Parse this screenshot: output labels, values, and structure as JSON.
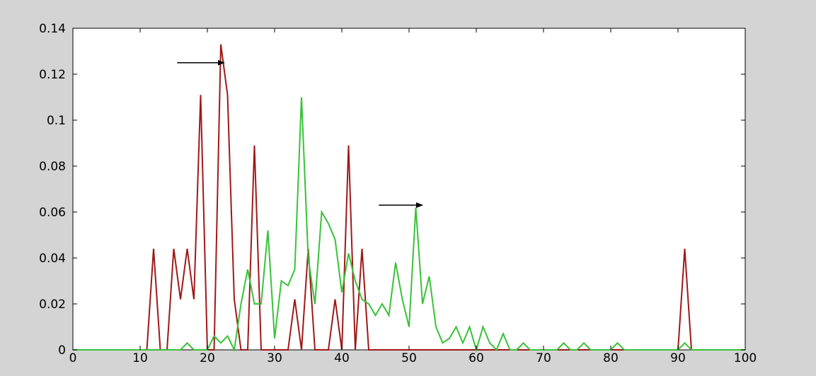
{
  "chart_data": {
    "type": "line",
    "title": "",
    "xlabel": "",
    "ylabel": "",
    "xlim": [
      0,
      100
    ],
    "ylim": [
      0,
      0.14
    ],
    "grid": false,
    "x_ticks": [
      0,
      10,
      20,
      30,
      40,
      50,
      60,
      70,
      80,
      90,
      100
    ],
    "x_tick_labels": [
      "0",
      "10",
      "20",
      "30",
      "40",
      "50",
      "60",
      "70",
      "80",
      "90",
      "100"
    ],
    "y_ticks": [
      0,
      0.02,
      0.04,
      0.06,
      0.08,
      0.1,
      0.12,
      0.14
    ],
    "y_tick_labels": [
      "0",
      "0.02",
      "0.04",
      "0.06",
      "0.08",
      "0.1",
      "0.12",
      "0.14"
    ],
    "series": [
      {
        "color": "#a01818",
        "x": [
          0,
          11,
          12,
          13,
          14,
          15,
          16,
          17,
          18,
          19,
          20,
          21,
          22,
          23,
          24,
          25,
          26,
          27,
          28,
          29,
          30,
          31,
          32,
          33,
          34,
          35,
          36,
          37,
          38,
          39,
          40,
          41,
          42,
          43,
          44,
          45,
          89,
          90,
          91,
          92,
          93,
          100
        ],
        "y": [
          0,
          0,
          0.044,
          0,
          0,
          0.044,
          0.022,
          0.044,
          0.022,
          0.111,
          0,
          0,
          0.133,
          0.111,
          0.022,
          0,
          0,
          0.089,
          0,
          0,
          0,
          0,
          0,
          0.022,
          0,
          0.044,
          0,
          0,
          0,
          0.022,
          0,
          0.089,
          0,
          0.044,
          0,
          0,
          0,
          0,
          0.044,
          0,
          0,
          0
        ]
      },
      {
        "color": "#38c238",
        "x": [
          0,
          16,
          17,
          18,
          19,
          20,
          21,
          22,
          23,
          24,
          25,
          26,
          27,
          28,
          29,
          30,
          31,
          32,
          33,
          34,
          35,
          36,
          37,
          38,
          39,
          40,
          41,
          42,
          43,
          44,
          45,
          46,
          47,
          48,
          49,
          50,
          51,
          52,
          53,
          54,
          55,
          56,
          57,
          58,
          59,
          60,
          61,
          62,
          63,
          64,
          65,
          66,
          67,
          68,
          72,
          73,
          74,
          75,
          76,
          77,
          80,
          81,
          82,
          90,
          91,
          92,
          100
        ],
        "y": [
          0,
          0,
          0.003,
          0,
          0,
          0,
          0.006,
          0.003,
          0.006,
          0,
          0.02,
          0.035,
          0.02,
          0.02,
          0.052,
          0.005,
          0.03,
          0.028,
          0.035,
          0.11,
          0.04,
          0.02,
          0.06,
          0.055,
          0.048,
          0.025,
          0.042,
          0.03,
          0.022,
          0.02,
          0.015,
          0.02,
          0.015,
          0.038,
          0.022,
          0.01,
          0.062,
          0.02,
          0.032,
          0.01,
          0.003,
          0.005,
          0.01,
          0.003,
          0.01,
          0,
          0.01,
          0.003,
          0,
          0.007,
          0,
          0,
          0.003,
          0,
          0,
          0.003,
          0,
          0,
          0.003,
          0,
          0,
          0.003,
          0,
          0,
          0.003,
          0,
          0
        ]
      }
    ],
    "annotations": [
      {
        "type": "arrow",
        "from": [
          15.5,
          0.125
        ],
        "to": [
          22.5,
          0.125
        ]
      },
      {
        "type": "arrow",
        "from": [
          45.5,
          0.063
        ],
        "to": [
          52,
          0.063
        ]
      }
    ]
  }
}
